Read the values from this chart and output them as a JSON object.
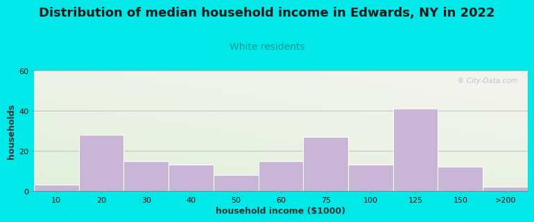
{
  "title": "Distribution of median household income in Edwards, NY in 2022",
  "subtitle": "White residents",
  "xlabel": "household income ($1000)",
  "ylabel": "households",
  "bar_labels": [
    "10",
    "20",
    "30",
    "40",
    "50",
    "60",
    "75",
    "100",
    "125",
    "150",
    ">200"
  ],
  "bar_values": [
    3,
    28,
    15,
    13,
    8,
    15,
    27,
    13,
    41,
    12,
    2
  ],
  "bar_color": "#c9b5d5",
  "bar_edge_color": "#ffffff",
  "ylim": [
    0,
    60
  ],
  "yticks": [
    0,
    20,
    40,
    60
  ],
  "background_outer": "#00e8e8",
  "title_fontsize": 13,
  "subtitle_fontsize": 10,
  "subtitle_color": "#009999",
  "title_color": "#1a1a1a",
  "axis_label_fontsize": 9,
  "tick_fontsize": 8,
  "watermark": "® City-Data.com",
  "watermark_color": "#b0c0c0"
}
